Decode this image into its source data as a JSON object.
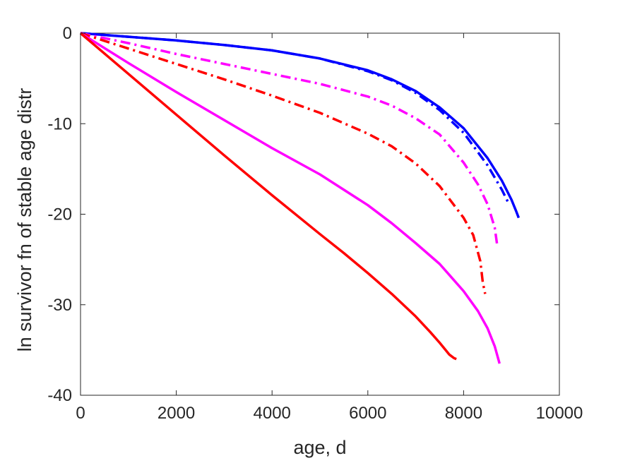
{
  "chart_data": {
    "type": "line",
    "title": "",
    "xlabel": "age, d",
    "ylabel": "ln survivor fn of stable age distr",
    "xlim": [
      0,
      10000
    ],
    "ylim": [
      -40,
      0
    ],
    "x_ticks": [
      0,
      2000,
      4000,
      6000,
      8000,
      10000
    ],
    "y_ticks": [
      -40,
      -30,
      -20,
      -10,
      0
    ],
    "x_tick_labels": [
      "0",
      "2000",
      "4000",
      "6000",
      "8000",
      "10000"
    ],
    "y_tick_labels": [
      "-40",
      "-30",
      "-20",
      "-10",
      "0"
    ],
    "grid": false,
    "legend": "none",
    "series": [
      {
        "color": "#0000ff",
        "style": "solid",
        "x": [
          0,
          1000,
          2000,
          3000,
          4000,
          5000,
          6000,
          6500,
          7000,
          7500,
          8000,
          8500,
          8800,
          9000,
          9100,
          9150
        ],
        "y": [
          0,
          -0.4,
          -0.8,
          -1.3,
          -1.9,
          -2.8,
          -4.1,
          -5.1,
          -6.4,
          -8.2,
          -10.5,
          -13.8,
          -16.3,
          -18.4,
          -19.7,
          -20.4
        ]
      },
      {
        "color": "#0000ff",
        "style": "dashdot",
        "x": [
          0,
          1000,
          2000,
          3000,
          4000,
          5000,
          6000,
          6500,
          7000,
          7500,
          8000,
          8500,
          8800,
          8950
        ],
        "y": [
          0,
          -0.4,
          -0.8,
          -1.3,
          -1.9,
          -2.8,
          -4.2,
          -5.2,
          -6.6,
          -8.5,
          -11.0,
          -14.6,
          -17.3,
          -18.9
        ]
      },
      {
        "color": "#ff00ff",
        "style": "dashdot",
        "x": [
          0,
          1000,
          2000,
          3000,
          4000,
          5000,
          6000,
          6500,
          7000,
          7500,
          8000,
          8300,
          8500,
          8650,
          8700
        ],
        "y": [
          0,
          -1.1,
          -2.3,
          -3.4,
          -4.5,
          -5.6,
          -7.0,
          -8.0,
          -9.4,
          -11.2,
          -14.3,
          -16.7,
          -18.9,
          -21.5,
          -23.4
        ]
      },
      {
        "color": "#ff0000",
        "style": "dashdot",
        "x": [
          0,
          1000,
          2000,
          3000,
          4000,
          5000,
          6000,
          6500,
          7000,
          7500,
          8000,
          8200,
          8350,
          8400,
          8450
        ],
        "y": [
          0,
          -1.7,
          -3.4,
          -5.1,
          -6.9,
          -8.8,
          -11.1,
          -12.5,
          -14.4,
          -16.9,
          -20.4,
          -22.3,
          -25.2,
          -27.5,
          -28.8
        ]
      },
      {
        "color": "#ff00ff",
        "style": "solid",
        "x": [
          0,
          1000,
          2000,
          3000,
          4000,
          5000,
          6000,
          6500,
          7000,
          7500,
          8000,
          8300,
          8500,
          8650,
          8750
        ],
        "y": [
          0,
          -3.3,
          -6.5,
          -9.6,
          -12.7,
          -15.6,
          -19.0,
          -21.0,
          -23.2,
          -25.5,
          -28.5,
          -30.7,
          -32.6,
          -34.6,
          -36.5
        ]
      },
      {
        "color": "#ff0000",
        "style": "solid",
        "x": [
          0,
          1000,
          2000,
          3000,
          4000,
          5000,
          5500,
          6000,
          6500,
          7000,
          7300,
          7500,
          7700,
          7800,
          7850
        ],
        "y": [
          0,
          -4.5,
          -9.0,
          -13.5,
          -17.9,
          -22.2,
          -24.3,
          -26.5,
          -28.8,
          -31.3,
          -33.0,
          -34.2,
          -35.5,
          -35.9,
          -36.0
        ]
      }
    ]
  }
}
